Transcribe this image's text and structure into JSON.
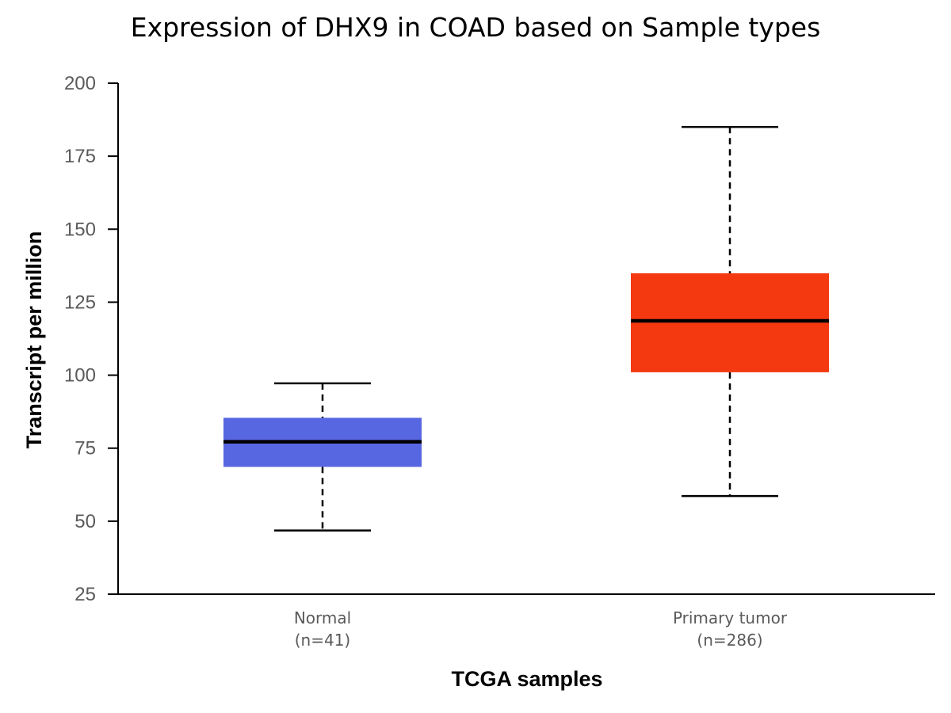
{
  "chart_data": {
    "type": "box",
    "title": "Expression of DHX9 in COAD based on Sample types",
    "xlabel": "TCGA samples",
    "ylabel": "Transcript per million",
    "ylim": [
      25,
      200
    ],
    "yticks": [
      25,
      50,
      75,
      100,
      125,
      150,
      175,
      200
    ],
    "grid": false,
    "legend": "none",
    "categories": [
      {
        "name": "Normal",
        "count_label": "(n=41)",
        "color": "#5766e1",
        "whisker_low": 46.8,
        "q1": 68.6,
        "median": 77.2,
        "q3": 85.4,
        "whisker_high": 97.2
      },
      {
        "name": "Primary tumor",
        "count_label": "(n=286)",
        "color": "#f43911",
        "whisker_low": 58.6,
        "q1": 101.0,
        "median": 118.6,
        "q3": 134.9,
        "whisker_high": 185.0
      }
    ]
  }
}
